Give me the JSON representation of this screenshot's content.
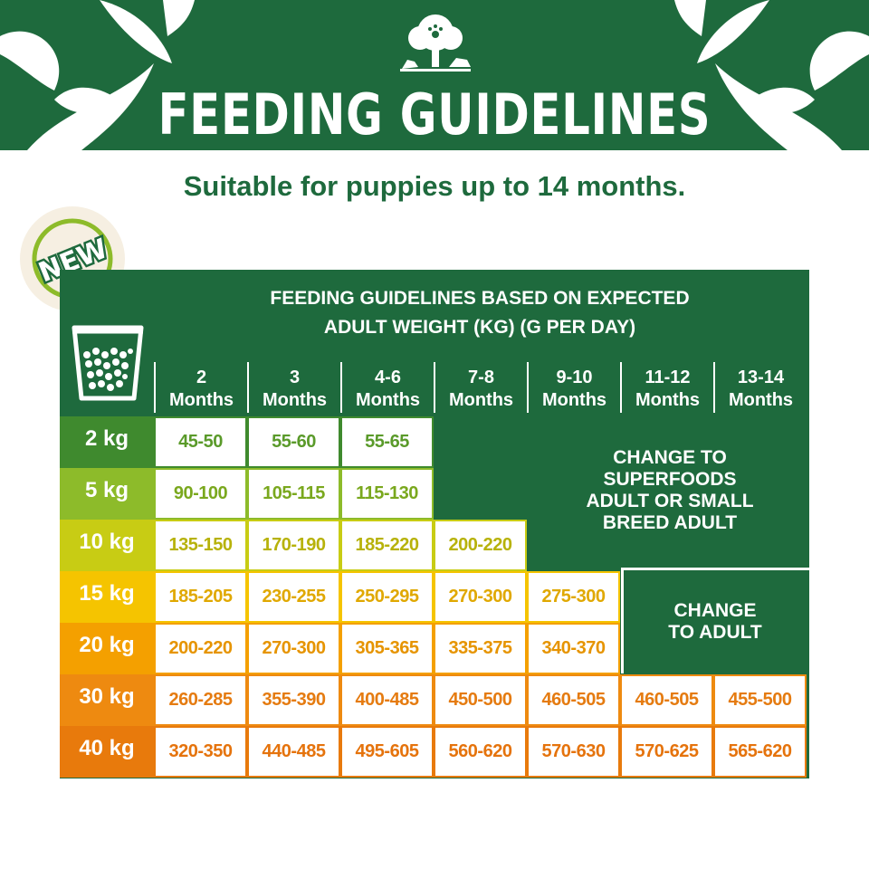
{
  "title": "FEEDING GUIDELINES",
  "subtitle": "Suitable for puppies up to 14 months.",
  "badge": "NEW",
  "table_header": {
    "line1": "FEEDING GUIDELINES BASED ON EXPECTED",
    "line2": "ADULT WEIGHT (KG) (G PER DAY)"
  },
  "columns": [
    {
      "top": "2",
      "bottom": "Months"
    },
    {
      "top": "3",
      "bottom": "Months"
    },
    {
      "top": "4-6",
      "bottom": "Months"
    },
    {
      "top": "7-8",
      "bottom": "Months"
    },
    {
      "top": "9-10",
      "bottom": "Months"
    },
    {
      "top": "11-12",
      "bottom": "Months"
    },
    {
      "top": "13-14",
      "bottom": "Months"
    }
  ],
  "rows": [
    {
      "label": "2 kg",
      "color": "#3f8a2e",
      "text_color": "#5a9a2a",
      "values": [
        "45-50",
        "55-60",
        "55-65"
      ]
    },
    {
      "label": "5 kg",
      "color": "#8dbb2a",
      "text_color": "#7aa81e",
      "values": [
        "90-100",
        "105-115",
        "115-130"
      ]
    },
    {
      "label": "10 kg",
      "color": "#c8cc14",
      "text_color": "#b7b20a",
      "values": [
        "135-150",
        "170-190",
        "185-220",
        "200-220"
      ]
    },
    {
      "label": "15 kg",
      "color": "#f5c400",
      "text_color": "#e0a800",
      "values": [
        "185-205",
        "230-255",
        "250-295",
        "270-300",
        "275-300"
      ]
    },
    {
      "label": "20 kg",
      "color": "#f4a000",
      "text_color": "#e69400",
      "values": [
        "200-220",
        "270-300",
        "305-365",
        "335-375",
        "340-370"
      ]
    },
    {
      "label": "30 kg",
      "color": "#ee8a10",
      "text_color": "#e57b10",
      "values": [
        "260-285",
        "355-390",
        "400-485",
        "450-500",
        "460-505",
        "460-505",
        "455-500"
      ]
    },
    {
      "label": "40 kg",
      "color": "#e87a0c",
      "text_color": "#e5730c",
      "values": [
        "320-350",
        "440-485",
        "495-605",
        "560-620",
        "570-630",
        "570-625",
        "565-620"
      ]
    }
  ],
  "messages": {
    "superfoods": [
      "CHANGE TO",
      "SUPERFOODS",
      "ADULT OR SMALL",
      "BREED ADULT"
    ],
    "adult": [
      "CHANGE",
      "TO ADULT"
    ]
  },
  "colors": {
    "brand_green": "#1e6a3d",
    "badge_cream": "#f6efe2"
  }
}
